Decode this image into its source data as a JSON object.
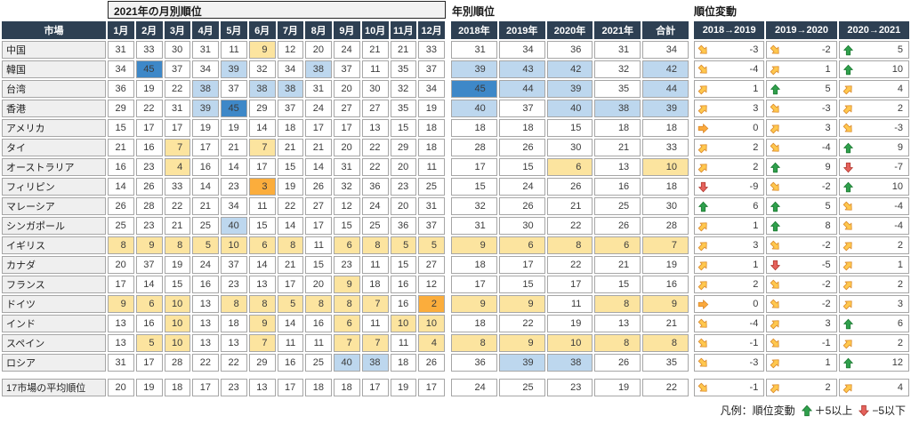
{
  "chart_data": {
    "type": "table",
    "title_monthly": "2021年の月別順位",
    "title_yearly": "年別順位",
    "title_changes": "順位変動",
    "market_header": "市場",
    "month_headers": [
      "1月",
      "2月",
      "3月",
      "4月",
      "5月",
      "6月",
      "7月",
      "8月",
      "9月",
      "10月",
      "11月",
      "12月"
    ],
    "year_headers": [
      "2018年",
      "2019年",
      "2020年",
      "2021年",
      "合計"
    ],
    "transition_headers": [
      "2018→2019",
      "2019→2020",
      "2020→2021"
    ],
    "highlight_rule": "rank<=3 orange, rank<=10 yellow, rank>=38 light-blue, rank=45 dark-blue",
    "rows": [
      {
        "name": "中国",
        "monthly": [
          31,
          33,
          30,
          31,
          11,
          9,
          12,
          20,
          24,
          21,
          21,
          33
        ],
        "yearly": [
          31,
          34,
          36,
          31,
          34
        ],
        "changes": [
          {
            "v": -3,
            "a": "se"
          },
          {
            "v": -2,
            "a": "se"
          },
          {
            "v": 5,
            "a": "up"
          }
        ]
      },
      {
        "name": "韓国",
        "monthly": [
          34,
          45,
          37,
          34,
          39,
          32,
          34,
          38,
          37,
          11,
          35,
          37
        ],
        "yearly": [
          39,
          43,
          42,
          32,
          42
        ],
        "changes": [
          {
            "v": -4,
            "a": "se"
          },
          {
            "v": 1,
            "a": "ne"
          },
          {
            "v": 10,
            "a": "up"
          }
        ]
      },
      {
        "name": "台湾",
        "monthly": [
          36,
          19,
          22,
          38,
          37,
          38,
          38,
          31,
          20,
          30,
          32,
          34
        ],
        "yearly": [
          45,
          44,
          39,
          35,
          44
        ],
        "changes": [
          {
            "v": 1,
            "a": "ne"
          },
          {
            "v": 5,
            "a": "up"
          },
          {
            "v": 4,
            "a": "ne"
          }
        ]
      },
      {
        "name": "香港",
        "monthly": [
          29,
          22,
          31,
          39,
          45,
          29,
          37,
          24,
          27,
          27,
          35,
          19
        ],
        "yearly": [
          40,
          37,
          40,
          38,
          39
        ],
        "changes": [
          {
            "v": 3,
            "a": "ne"
          },
          {
            "v": -3,
            "a": "se"
          },
          {
            "v": 2,
            "a": "ne"
          }
        ]
      },
      {
        "name": "アメリカ",
        "monthly": [
          15,
          17,
          17,
          19,
          19,
          14,
          18,
          17,
          17,
          13,
          15,
          18
        ],
        "yearly": [
          18,
          18,
          15,
          18,
          18
        ],
        "changes": [
          {
            "v": 0,
            "a": "e"
          },
          {
            "v": 3,
            "a": "ne"
          },
          {
            "v": -3,
            "a": "se"
          }
        ]
      },
      {
        "name": "タイ",
        "monthly": [
          21,
          16,
          7,
          17,
          21,
          7,
          21,
          21,
          20,
          22,
          29,
          18
        ],
        "yearly": [
          28,
          26,
          30,
          21,
          33
        ],
        "changes": [
          {
            "v": 2,
            "a": "ne"
          },
          {
            "v": -4,
            "a": "se"
          },
          {
            "v": 9,
            "a": "up"
          }
        ]
      },
      {
        "name": "オーストラリア",
        "monthly": [
          16,
          23,
          4,
          16,
          14,
          17,
          15,
          14,
          31,
          22,
          20,
          11
        ],
        "yearly": [
          17,
          15,
          6,
          13,
          10
        ],
        "changes": [
          {
            "v": 2,
            "a": "ne"
          },
          {
            "v": 9,
            "a": "up"
          },
          {
            "v": -7,
            "a": "down"
          }
        ]
      },
      {
        "name": "フィリピン",
        "monthly": [
          14,
          26,
          33,
          14,
          23,
          3,
          19,
          26,
          32,
          36,
          23,
          25
        ],
        "yearly": [
          15,
          24,
          26,
          16,
          18
        ],
        "changes": [
          {
            "v": -9,
            "a": "down"
          },
          {
            "v": -2,
            "a": "se"
          },
          {
            "v": 10,
            "a": "up"
          }
        ]
      },
      {
        "name": "マレーシア",
        "monthly": [
          26,
          28,
          22,
          21,
          34,
          11,
          22,
          27,
          12,
          24,
          20,
          31
        ],
        "yearly": [
          32,
          26,
          21,
          25,
          30
        ],
        "changes": [
          {
            "v": 6,
            "a": "up"
          },
          {
            "v": 5,
            "a": "up"
          },
          {
            "v": -4,
            "a": "se"
          }
        ]
      },
      {
        "name": "シンガポール",
        "monthly": [
          25,
          23,
          21,
          25,
          40,
          15,
          14,
          17,
          15,
          25,
          36,
          37
        ],
        "yearly": [
          31,
          30,
          22,
          26,
          28
        ],
        "changes": [
          {
            "v": 1,
            "a": "ne"
          },
          {
            "v": 8,
            "a": "up"
          },
          {
            "v": -4,
            "a": "se"
          }
        ]
      },
      {
        "name": "イギリス",
        "monthly": [
          8,
          9,
          8,
          5,
          10,
          6,
          8,
          11,
          6,
          8,
          5,
          5
        ],
        "yearly": [
          9,
          6,
          8,
          6,
          7
        ],
        "changes": [
          {
            "v": 3,
            "a": "ne"
          },
          {
            "v": -2,
            "a": "se"
          },
          {
            "v": 2,
            "a": "ne"
          }
        ]
      },
      {
        "name": "カナダ",
        "monthly": [
          20,
          37,
          19,
          24,
          37,
          14,
          21,
          15,
          23,
          11,
          15,
          27
        ],
        "yearly": [
          18,
          17,
          22,
          21,
          19
        ],
        "changes": [
          {
            "v": 1,
            "a": "ne"
          },
          {
            "v": -5,
            "a": "down"
          },
          {
            "v": 1,
            "a": "ne"
          }
        ]
      },
      {
        "name": "フランス",
        "monthly": [
          17,
          14,
          15,
          16,
          23,
          13,
          17,
          20,
          9,
          18,
          16,
          12
        ],
        "yearly": [
          17,
          15,
          17,
          15,
          16
        ],
        "changes": [
          {
            "v": 2,
            "a": "ne"
          },
          {
            "v": -2,
            "a": "se"
          },
          {
            "v": 2,
            "a": "ne"
          }
        ]
      },
      {
        "name": "ドイツ",
        "monthly": [
          9,
          6,
          10,
          13,
          8,
          8,
          5,
          8,
          8,
          7,
          16,
          2
        ],
        "yearly": [
          9,
          9,
          11,
          8,
          9
        ],
        "changes": [
          {
            "v": 0,
            "a": "e"
          },
          {
            "v": -2,
            "a": "se"
          },
          {
            "v": 3,
            "a": "ne"
          }
        ]
      },
      {
        "name": "インド",
        "monthly": [
          13,
          16,
          10,
          13,
          18,
          9,
          14,
          16,
          6,
          11,
          10,
          10
        ],
        "yearly": [
          18,
          22,
          19,
          13,
          21
        ],
        "changes": [
          {
            "v": -4,
            "a": "se"
          },
          {
            "v": 3,
            "a": "ne"
          },
          {
            "v": 6,
            "a": "up"
          }
        ]
      },
      {
        "name": "スペイン",
        "monthly": [
          13,
          5,
          10,
          13,
          13,
          7,
          11,
          11,
          7,
          7,
          11,
          4
        ],
        "yearly": [
          8,
          9,
          10,
          8,
          8
        ],
        "changes": [
          {
            "v": -1,
            "a": "se"
          },
          {
            "v": -1,
            "a": "se"
          },
          {
            "v": 2,
            "a": "ne"
          }
        ]
      },
      {
        "name": "ロシア",
        "monthly": [
          31,
          17,
          28,
          22,
          22,
          29,
          16,
          25,
          40,
          38,
          18,
          26
        ],
        "yearly": [
          36,
          39,
          38,
          26,
          35
        ],
        "changes": [
          {
            "v": -3,
            "a": "se"
          },
          {
            "v": 1,
            "a": "ne"
          },
          {
            "v": 12,
            "a": "up"
          }
        ]
      }
    ],
    "average_row": {
      "name": "17市場の平均順位",
      "monthly": [
        20,
        19,
        18,
        17,
        23,
        13,
        17,
        18,
        18,
        17,
        19,
        17
      ],
      "yearly": [
        24,
        25,
        23,
        19,
        22
      ],
      "changes": [
        {
          "v": -1,
          "a": "se"
        },
        {
          "v": 2,
          "a": "ne"
        },
        {
          "v": 4,
          "a": "ne"
        }
      ]
    },
    "legend": {
      "prefix": "凡例：順位変動",
      "up_label": "＋5以上",
      "down_label": "−5以下"
    }
  },
  "colors": {
    "header_bg": "#2e4053",
    "label_bg": "#efefef",
    "cell_border": "#a6a6a6",
    "highlight_yellow": "#fce49f",
    "highlight_orange": "#fbad3c",
    "highlight_blue_light": "#bdd7ee",
    "highlight_blue_dark": "#3e88c8",
    "arrow_yellow": "#ffc84e",
    "arrow_orange": "#fba93c",
    "arrow_green": "#2fa04c",
    "arrow_red": "#e5625c"
  }
}
